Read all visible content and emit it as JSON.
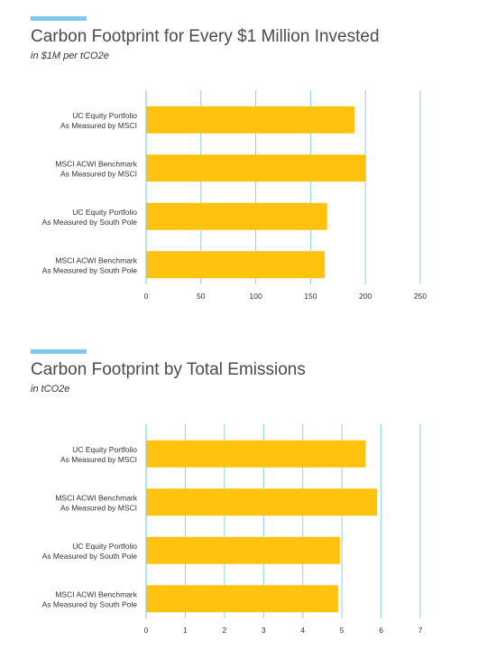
{
  "charts": [
    {
      "accent_color": "#7ec8e8",
      "title": "Carbon Footprint for Every $1 Million Invested",
      "subtitle": "in $1M per tCO2e"
    },
    {
      "accent_color": "#7ec8e8",
      "title": "Carbon Footprint by Total Emissions",
      "subtitle": "in tCO2e"
    }
  ],
  "chart_data": [
    {
      "type": "bar",
      "orientation": "horizontal",
      "title": "Carbon Footprint for Every $1 Million Invested",
      "subtitle": "in $1M per tCO2e",
      "categories": [
        [
          "UC Equity Portfolio",
          "As Measured by MSCI"
        ],
        [
          "MSCI ACWI Benchmark",
          "As Measured by MSCI"
        ],
        [
          "UC Equity Portfolio",
          "As Measured by South Pole"
        ],
        [
          "MSCI ACWI Benchmark",
          "As Measured by South Pole"
        ]
      ],
      "values": [
        190,
        200,
        165,
        163
      ],
      "xlim": [
        0,
        250
      ],
      "ticks": [
        0,
        50,
        100,
        150,
        200,
        250
      ],
      "grid": true,
      "bar_color": "#ffc20e",
      "grid_color": "#8ecfe6"
    },
    {
      "type": "bar",
      "orientation": "horizontal",
      "title": "Carbon Footprint by Total Emissions",
      "subtitle": "in tCO2e",
      "categories": [
        [
          "UC Equity Portfolio",
          "As Measured by MSCI"
        ],
        [
          "MSCI ACWI Benchmark",
          "As Measured by MSCI"
        ],
        [
          "UC Equity Portfolio",
          "As Measured by South Pole"
        ],
        [
          "MSCI ACWI Benchmark",
          "As Measured by South Pole"
        ]
      ],
      "values": [
        5.6,
        5.9,
        4.95,
        4.9
      ],
      "xlim": [
        0,
        7
      ],
      "ticks": [
        0,
        1,
        2,
        3,
        4,
        5,
        6,
        7
      ],
      "grid": true,
      "bar_color": "#ffc20e",
      "grid_color": "#8ecfe6"
    }
  ]
}
